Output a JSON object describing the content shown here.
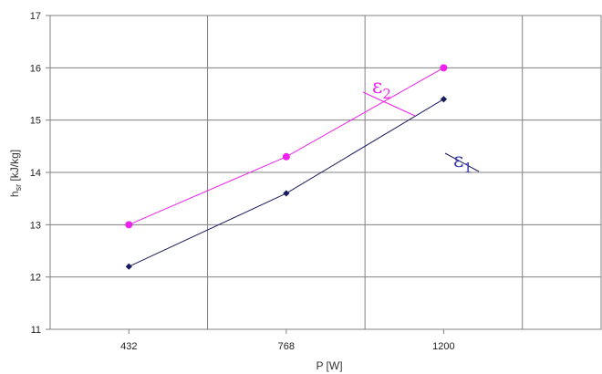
{
  "chart_data": {
    "type": "line",
    "x": [
      432,
      768,
      1200
    ],
    "categories": [
      "432",
      "768",
      "1200"
    ],
    "series": [
      {
        "name": "ε2",
        "label_main": "ε",
        "label_sub": "2",
        "values": [
          13.0,
          14.3,
          16.0
        ],
        "color": "#ee22ee",
        "marker": "circle"
      },
      {
        "name": "ε1",
        "label_main": "ε",
        "label_sub": "1",
        "values": [
          12.2,
          13.6,
          15.4
        ],
        "color": "#1a1a5e",
        "marker": "diamond"
      }
    ],
    "xlabel": "P [W]",
    "ylabel_main": "h",
    "ylabel_sub": "sr",
    "ylabel_rest": " [kJ/kg]",
    "ylim": [
      11,
      17
    ],
    "yticks": [
      "11",
      "12",
      "13",
      "14",
      "15",
      "16",
      "17"
    ],
    "grid": true,
    "legend": "inline labels near lines"
  }
}
